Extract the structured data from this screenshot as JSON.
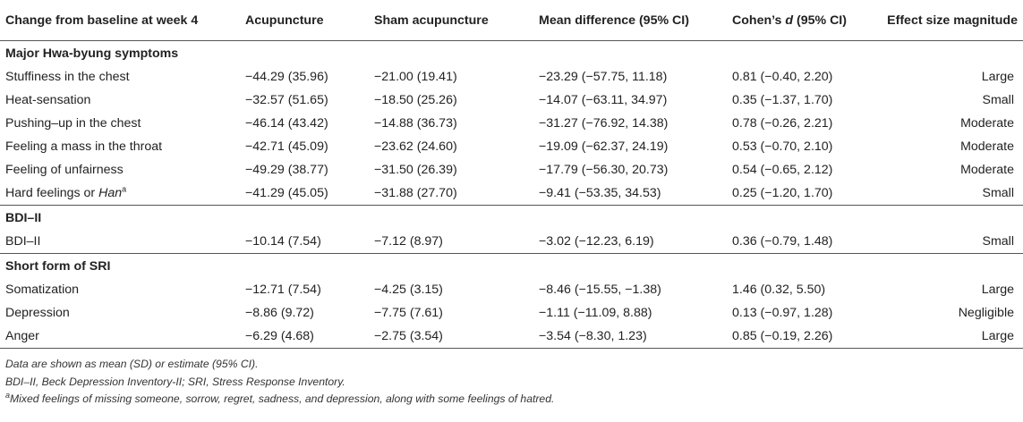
{
  "table": {
    "headers": [
      "Change from baseline at week 4",
      "Acupuncture",
      "Sham acupuncture",
      "Mean difference (95% CI)",
      "Cohen’s d (95% CI)",
      "Effect size magnitude"
    ],
    "cohen_prefix": "Cohen’s ",
    "cohen_d": "d",
    "cohen_suffix": " (95% CI)",
    "sections": [
      {
        "title": "Major Hwa-byung symptoms",
        "rows": [
          [
            "Stuffiness in the chest",
            "−44.29 (35.96)",
            "−21.00 (19.41)",
            "−23.29 (−57.75, 11.18)",
            "0.81 (−0.40, 2.20)",
            "Large"
          ],
          [
            "Heat-sensation",
            "−32.57 (51.65)",
            "−18.50 (25.26)",
            "−14.07 (−63.11, 34.97)",
            "0.35 (−1.37, 1.70)",
            "Small"
          ],
          [
            "Pushing–up in the chest",
            "−46.14 (43.42)",
            "−14.88 (36.73)",
            "−31.27 (−76.92, 14.38)",
            "0.78 (−0.26, 2.21)",
            "Moderate"
          ],
          [
            "Feeling a mass in the throat",
            "−42.71 (45.09)",
            "−23.62 (24.60)",
            "−19.09 (−62.37, 24.19)",
            "0.53 (−0.70, 2.10)",
            "Moderate"
          ],
          [
            "Feeling of unfairness",
            "−49.29 (38.77)",
            "−31.50 (26.39)",
            "−17.79 (−56.30, 20.73)",
            "0.54 (−0.65, 2.12)",
            "Moderate"
          ]
        ],
        "han_row": {
          "label_prefix": "Hard feelings or ",
          "label_italic": "Han",
          "label_sup": "a",
          "cells": [
            "−41.29 (45.05)",
            "−31.88 (27.70)",
            "−9.41 (−53.35, 34.53)",
            "0.25 (−1.20, 1.70)",
            "Small"
          ]
        }
      },
      {
        "title": "BDI–II",
        "rows": [
          [
            "BDI–II",
            "−10.14 (7.54)",
            "−7.12 (8.97)",
            "−3.02 (−12.23, 6.19)",
            "0.36 (−0.79, 1.48)",
            "Small"
          ]
        ]
      },
      {
        "title": "Short form of SRI",
        "rows": [
          [
            "Somatization",
            "−12.71 (7.54)",
            "−4.25 (3.15)",
            "−8.46 (−15.55, −1.38)",
            "1.46 (0.32, 5.50)",
            "Large"
          ],
          [
            "Depression",
            "−8.86 (9.72)",
            "−7.75 (7.61)",
            "−1.11 (−11.09, 8.88)",
            "0.13 (−0.97, 1.28)",
            "Negligible"
          ],
          [
            "Anger",
            "−6.29 (4.68)",
            "−2.75 (3.54)",
            "−3.54 (−8.30, 1.23)",
            "0.85 (−0.19, 2.26)",
            "Large"
          ]
        ]
      }
    ]
  },
  "footnotes": {
    "line1": "Data are shown as mean (SD) or estimate (95% CI).",
    "line2": "BDI–II, Beck Depression Inventory-II; SRI, Stress Response Inventory.",
    "line3_sup": "a",
    "line3": "Mixed feelings of missing someone, sorrow, regret, sadness, and depression, along with some feelings of hatred."
  }
}
